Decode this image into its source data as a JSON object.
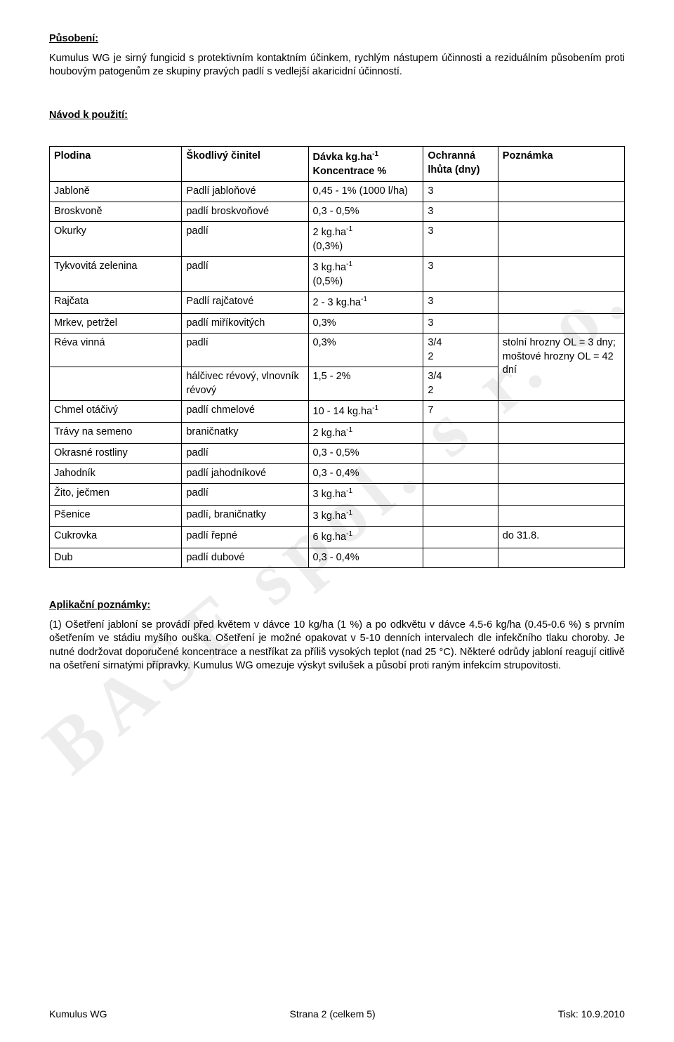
{
  "watermark": "BASF spol. s r. o.",
  "section1": {
    "title": "Působení:",
    "para": "Kumulus WG je sirný fungicid s protektivním kontaktním účinkem, rychlým nástupem účinnosti a reziduálním působením proti houbovým patogenům ze skupiny pravých padlí s vedlejší akaricidní účinností."
  },
  "section2": {
    "title": "Návod k použití:"
  },
  "table": {
    "headers": {
      "crop": "Plodina",
      "pest": "Škodlivý činitel",
      "dose_prefix": "Dávka kg.ha",
      "dose_sup": "-1",
      "dose_line2": "Koncentrace %",
      "ol": "Ochranná lhůta (dny)",
      "note": "Poznámka"
    },
    "rows": [
      {
        "crop": "Jabloně",
        "pest": "Padlí jabloňové",
        "dose": "0,45 - 1% (1000 l/ha)",
        "ol": "3",
        "note": ""
      },
      {
        "crop": "Broskvoně",
        "pest": "padlí broskvoňové",
        "dose": "0,3 - 0,5%",
        "ol": "3",
        "note": ""
      },
      {
        "crop": "Okurky",
        "pest": "padlí",
        "dose_parts": [
          {
            "pre": "2 kg.ha",
            "sup": "-1"
          },
          {
            "plain": "(0,3%)"
          }
        ],
        "ol": "3",
        "note": ""
      },
      {
        "crop": "Tykvovitá zelenina",
        "pest": "padlí",
        "dose_parts": [
          {
            "pre": "3 kg.ha",
            "sup": "-1"
          },
          {
            "plain": "(0,5%)"
          }
        ],
        "ol": "3",
        "note": ""
      },
      {
        "crop": "Rajčata",
        "pest": "Padlí rajčatové",
        "dose_parts": [
          {
            "pre": "2 - 3 kg.ha",
            "sup": "-1"
          }
        ],
        "ol": "3",
        "note": ""
      },
      {
        "crop": "Mrkev, petržel",
        "pest": "padlí miříkovitých",
        "dose": "0,3%",
        "ol": "3",
        "note": ""
      },
      {
        "crop": "Réva vinná",
        "pest": "padlí",
        "dose": "0,3%",
        "ol": "3/4\n2",
        "note": "stolní hrozny OL = 3 dny; moštové hrozny OL = 42 dní",
        "noteRowspan": 2
      },
      {
        "crop": "",
        "pest": "hálčivec révový, vlnovník révový",
        "dose": "1,5 - 2%",
        "ol": "3/4\n2",
        "skipNote": true
      },
      {
        "crop": "Chmel otáčivý",
        "pest": "padlí chmelové",
        "dose_parts": [
          {
            "pre": "10 - 14 kg.ha",
            "sup": "-1"
          }
        ],
        "ol": "7",
        "note": ""
      },
      {
        "crop": "Trávy na semeno",
        "pest": "braničnatky",
        "dose_parts": [
          {
            "pre": "2 kg.ha",
            "sup": "-1"
          }
        ],
        "ol": "",
        "note": ""
      },
      {
        "crop": "Okrasné rostliny",
        "pest": "padlí",
        "dose": "0,3 - 0,5%",
        "ol": "",
        "note": ""
      },
      {
        "crop": "Jahodník",
        "pest": "padlí jahodníkové",
        "dose": "0,3 - 0,4%",
        "ol": "",
        "note": ""
      },
      {
        "crop": "Žito, ječmen",
        "pest": "padlí",
        "dose_parts": [
          {
            "pre": "3 kg.ha",
            "sup": "-1"
          }
        ],
        "ol": "",
        "note": ""
      },
      {
        "crop": "Pšenice",
        "pest": "padlí, braničnatky",
        "dose_parts": [
          {
            "pre": "3 kg.ha",
            "sup": "-1"
          }
        ],
        "ol": "",
        "note": ""
      },
      {
        "crop": "Cukrovka",
        "pest": "padlí řepné",
        "dose_parts": [
          {
            "pre": "6 kg.ha",
            "sup": "-1"
          }
        ],
        "ol": "",
        "note": "do 31.8."
      },
      {
        "crop": "Dub",
        "pest": "padlí dubové",
        "dose": "0,3 - 0,4%",
        "ol": "",
        "note": ""
      }
    ]
  },
  "section3": {
    "title": "Aplikační poznámky:",
    "para": "(1) Ošetření jabloní se provádí před květem v dávce 10 kg/ha (1 %) a po odkvětu v dávce 4.5-6 kg/ha (0.45-0.6 %) s prvním ošetřením ve stádiu myšího ouška. Ošetření je možné opakovat v 5-10 denních intervalech dle infekčního tlaku choroby. Je nutné dodržovat doporučené koncentrace a nestříkat za příliš vysokých teplot (nad 25 °C). Některé odrůdy jabloní reagují citlivě na ošetření sirnatými přípravky. Kumulus WG omezuje výskyt svilušek a působí proti raným infekcím strupovitosti."
  },
  "footer": {
    "left": "Kumulus WG",
    "center": "Strana 2 (celkem 5)",
    "right": "Tisk: 10.9.2010"
  }
}
